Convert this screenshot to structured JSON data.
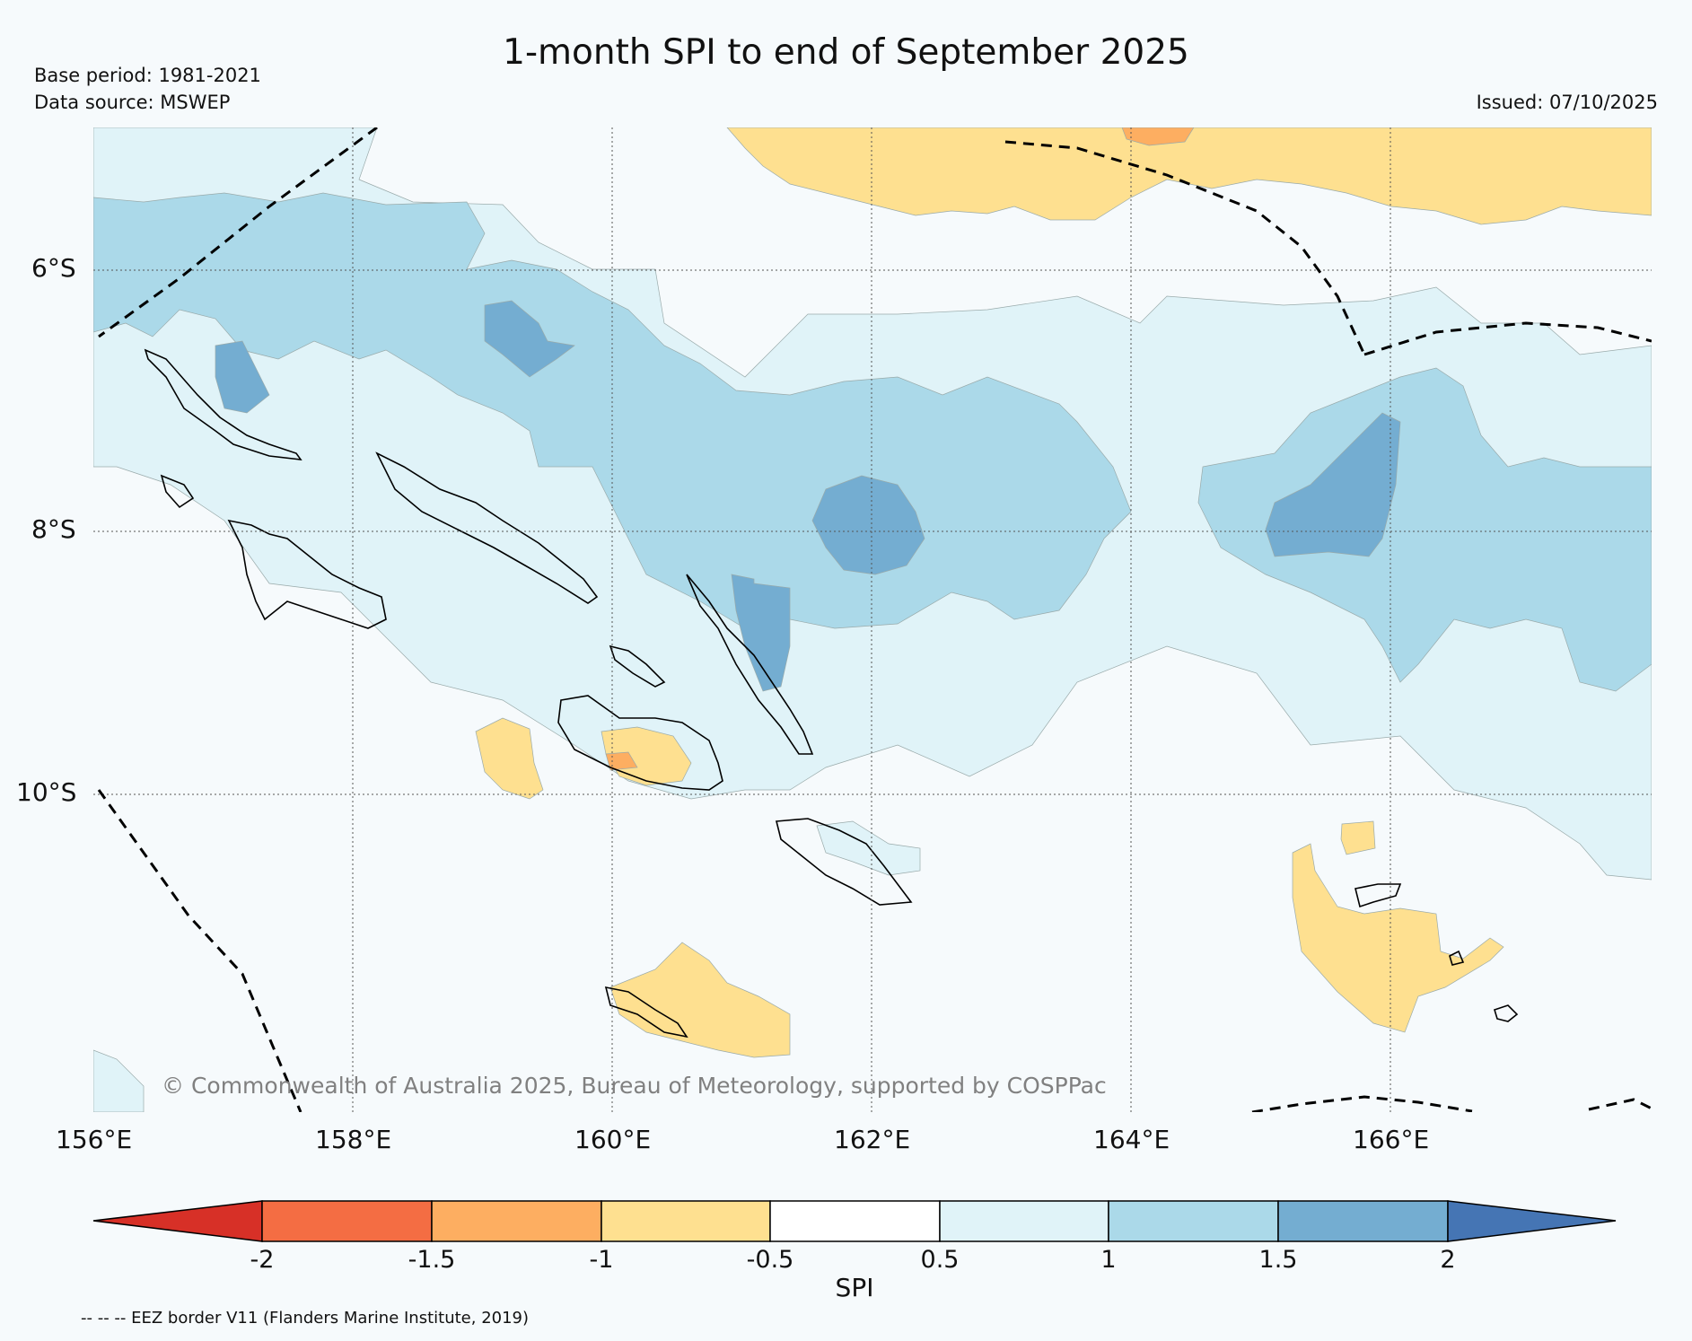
{
  "title": "1-month SPI to end of September 2025",
  "base_period": "Base period: 1981-2021",
  "data_source": "Data source: MSWEP",
  "issued": "Issued: 07/10/2025",
  "copyright": "© Commonwealth of Australia 2025, Bureau of Meteorology, supported by COSPPac",
  "lat_labels": [
    "6°S",
    "8°S",
    "10°S"
  ],
  "lon_labels": [
    "156°E",
    "158°E",
    "160°E",
    "162°E",
    "164°E",
    "166°E"
  ],
  "colorbar": {
    "label": "SPI",
    "ticks": [
      "-2",
      "-1.5",
      "-1",
      "-0.5",
      "0.5",
      "1",
      "1.5",
      "2"
    ],
    "colors": [
      "#d73027",
      "#f46d43",
      "#fdae61",
      "#fee090",
      "#ffffff",
      "#e0f3f8",
      "#abd9e9",
      "#74add1",
      "#4575b4"
    ]
  },
  "eez_note": "-- -- -- EEZ border V11 (Flanders Marine Institute, 2019)"
}
